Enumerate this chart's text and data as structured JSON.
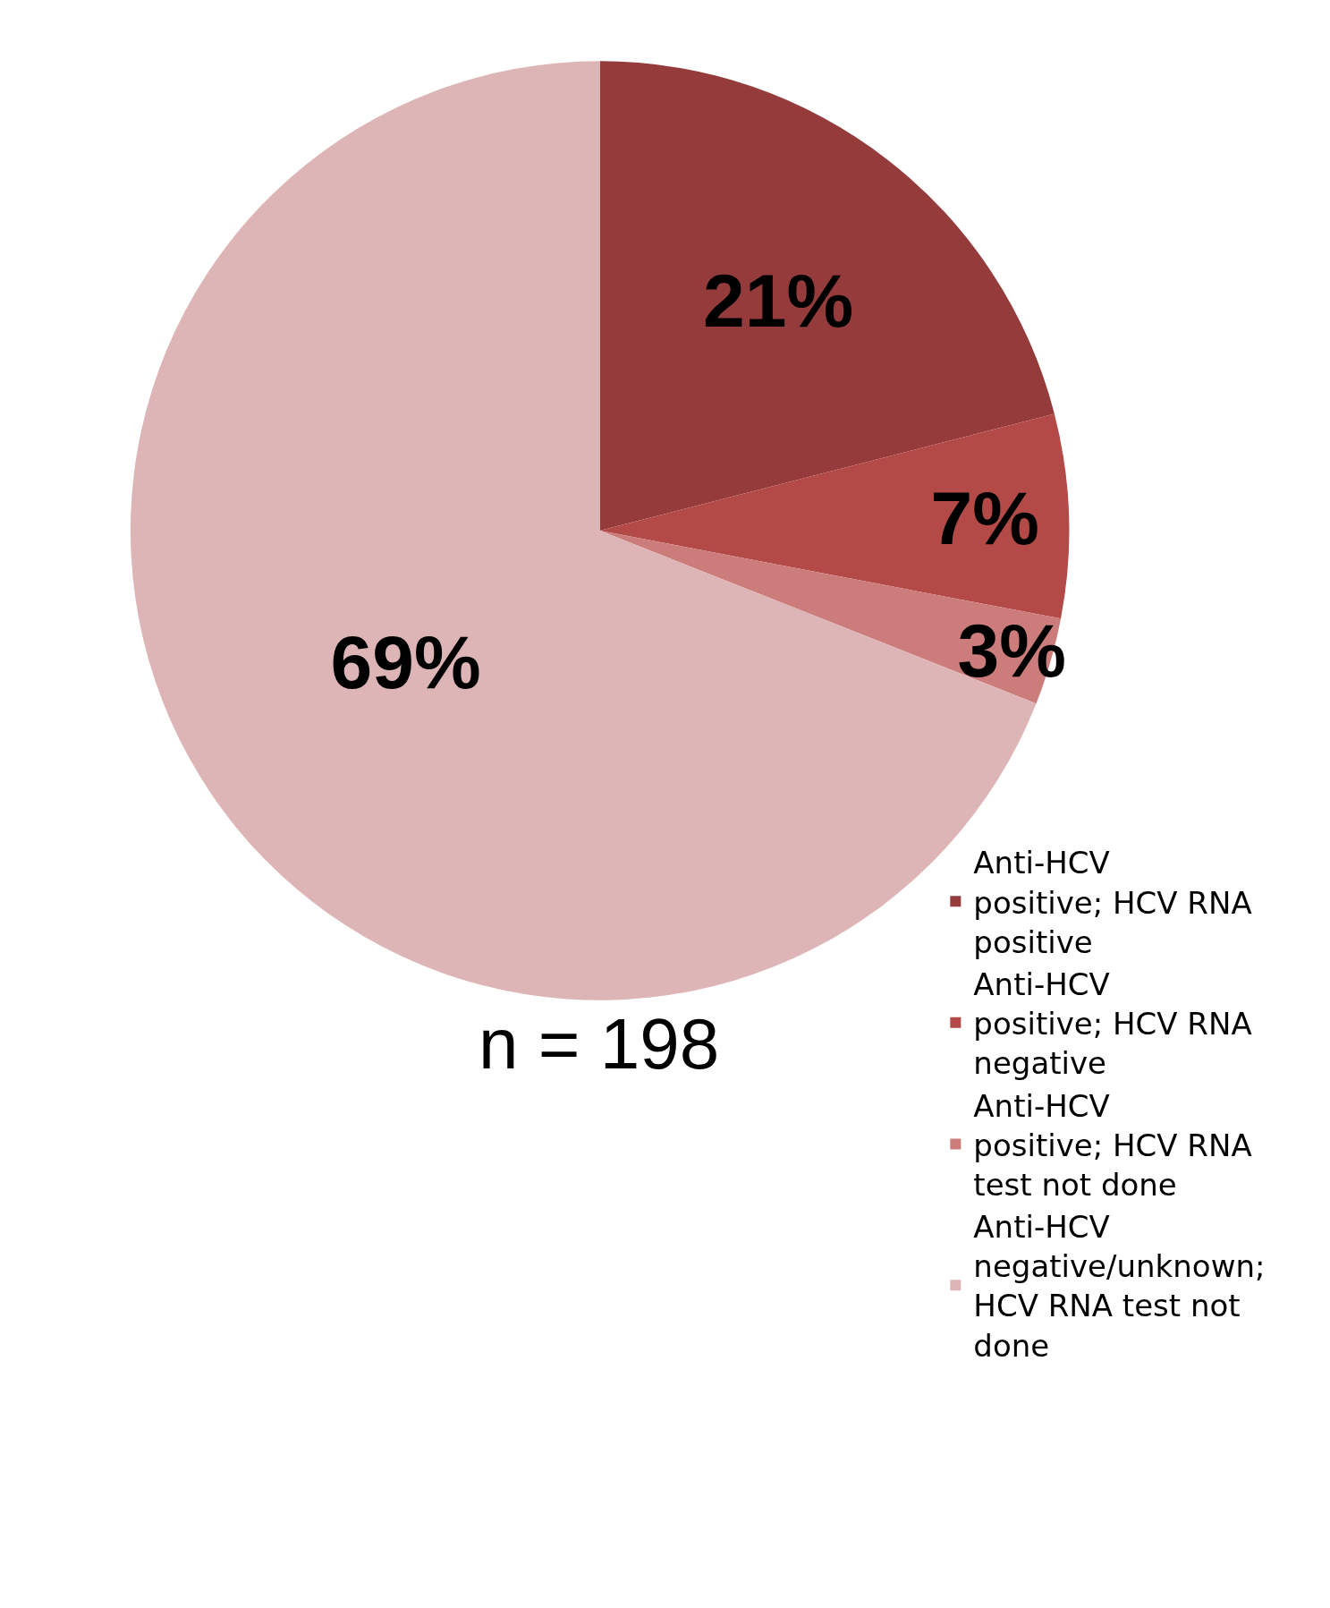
{
  "chart_data": {
    "type": "pie",
    "categories": [
      "Anti-HCV positive; HCV RNA positive",
      "Anti-HCV positive; HCV RNA negative",
      "Anti-HCV positive; HCV RNA test not done",
      "Anti-HCV negative/unknown; HCV RNA test not done"
    ],
    "values": [
      21,
      7,
      3,
      69
    ],
    "colors": [
      "#953b3b",
      "#b34a48",
      "#cc7c7a",
      "#deb5b6"
    ],
    "value_labels": [
      "21%",
      "7%",
      "3%",
      "69%"
    ],
    "annotations": [
      "n = 198"
    ],
    "legend": "bottom right"
  }
}
